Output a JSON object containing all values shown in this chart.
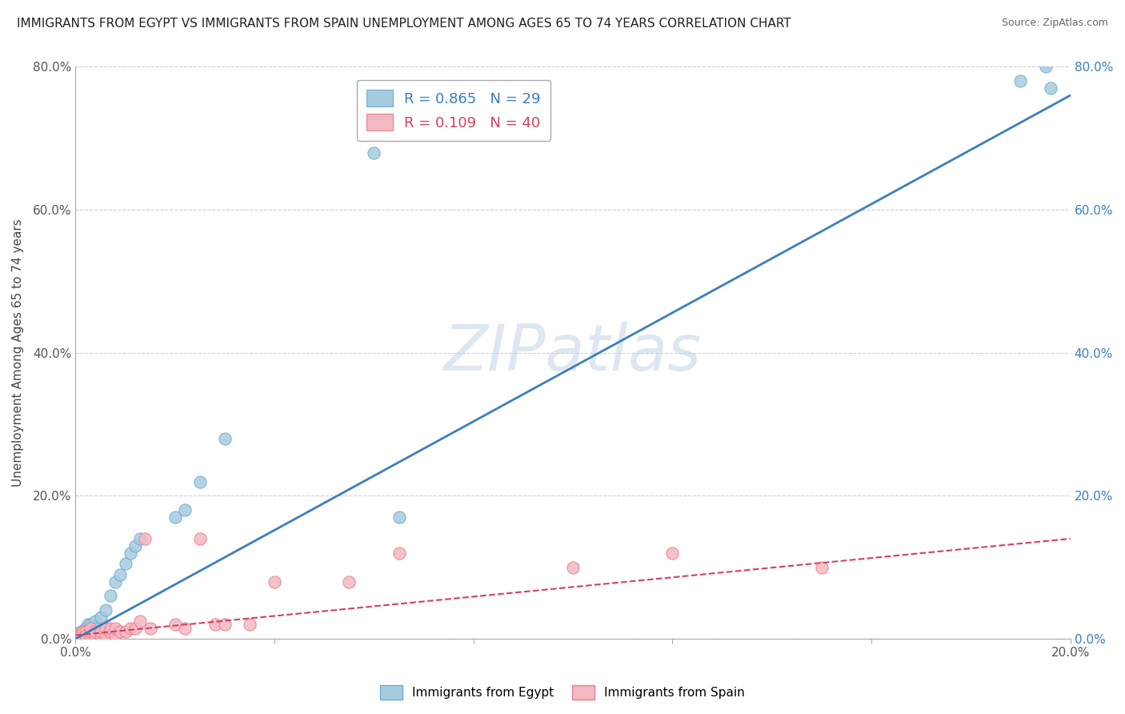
{
  "title": "IMMIGRANTS FROM EGYPT VS IMMIGRANTS FROM SPAIN UNEMPLOYMENT AMONG AGES 65 TO 74 YEARS CORRELATION CHART",
  "source": "Source: ZipAtlas.com",
  "ylabel": "Unemployment Among Ages 65 to 74 years",
  "xlim": [
    0.0,
    0.2
  ],
  "ylim": [
    0.0,
    0.8
  ],
  "xticks": [
    0.0,
    0.04,
    0.08,
    0.12,
    0.16,
    0.2
  ],
  "xtick_labels_show": [
    "0.0%",
    "",
    "",
    "",
    "",
    "20.0%"
  ],
  "yticks": [
    0.0,
    0.2,
    0.4,
    0.6,
    0.8
  ],
  "ytick_labels": [
    "0.0%",
    "20.0%",
    "40.0%",
    "60.0%",
    "80.0%"
  ],
  "watermark": "ZIPatlas",
  "egypt_color": "#a8cadf",
  "egypt_edge_color": "#6aaed6",
  "spain_color": "#f4b8c1",
  "spain_edge_color": "#e88090",
  "egypt_line_color": "#3a7fbf",
  "spain_line_color": "#d44060",
  "egypt_R": 0.865,
  "egypt_N": 29,
  "spain_R": 0.109,
  "spain_N": 40,
  "egypt_x": [
    0.0005,
    0.001,
    0.001,
    0.0015,
    0.002,
    0.002,
    0.0025,
    0.003,
    0.003,
    0.004,
    0.004,
    0.005,
    0.006,
    0.007,
    0.008,
    0.009,
    0.01,
    0.011,
    0.012,
    0.013,
    0.02,
    0.022,
    0.025,
    0.03,
    0.06,
    0.065,
    0.19,
    0.195,
    0.196
  ],
  "egypt_y": [
    0.005,
    0.005,
    0.01,
    0.01,
    0.01,
    0.015,
    0.02,
    0.01,
    0.02,
    0.025,
    0.015,
    0.03,
    0.04,
    0.06,
    0.08,
    0.09,
    0.105,
    0.12,
    0.13,
    0.14,
    0.17,
    0.18,
    0.22,
    0.28,
    0.68,
    0.17,
    0.78,
    0.8,
    0.77
  ],
  "spain_x": [
    0.0003,
    0.0005,
    0.001,
    0.001,
    0.0015,
    0.002,
    0.002,
    0.002,
    0.003,
    0.003,
    0.003,
    0.004,
    0.004,
    0.005,
    0.005,
    0.006,
    0.006,
    0.007,
    0.007,
    0.008,
    0.008,
    0.009,
    0.01,
    0.011,
    0.012,
    0.013,
    0.014,
    0.015,
    0.02,
    0.022,
    0.025,
    0.028,
    0.03,
    0.035,
    0.04,
    0.055,
    0.065,
    0.1,
    0.12,
    0.15
  ],
  "spain_y": [
    0.005,
    0.005,
    0.008,
    0.005,
    0.01,
    0.005,
    0.01,
    0.005,
    0.005,
    0.01,
    0.015,
    0.005,
    0.01,
    0.005,
    0.01,
    0.005,
    0.015,
    0.01,
    0.015,
    0.005,
    0.015,
    0.01,
    0.01,
    0.015,
    0.015,
    0.025,
    0.14,
    0.015,
    0.02,
    0.015,
    0.14,
    0.02,
    0.02,
    0.02,
    0.08,
    0.08,
    0.12,
    0.1,
    0.12,
    0.1
  ],
  "egypt_line_x": [
    0.0,
    0.2
  ],
  "egypt_line_y": [
    0.0,
    0.76
  ],
  "spain_line_x": [
    0.0,
    0.2
  ],
  "spain_line_y": [
    0.005,
    0.14
  ]
}
